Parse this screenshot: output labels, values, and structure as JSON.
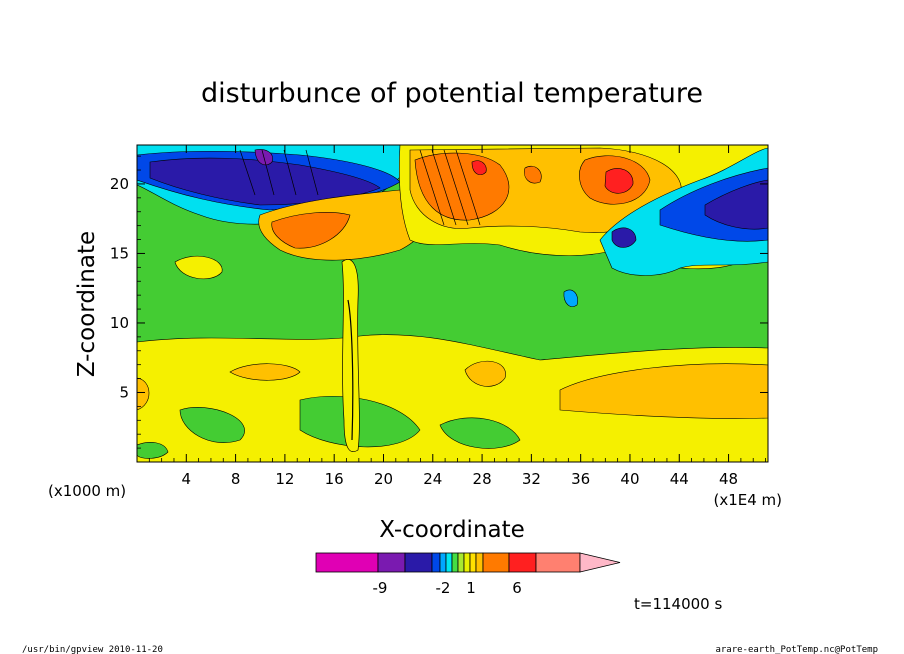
{
  "chart_data": {
    "type": "heatmap",
    "title": "disturbunce of potential temperature",
    "xlabel": "X-coordinate",
    "ylabel": "Z-coordinate",
    "x_unit_left": "(x1000 m)",
    "x_unit_right": "(x1E4 m)",
    "xlim": [
      0,
      51.2
    ],
    "ylim": [
      0,
      22.8
    ],
    "x_ticks": [
      4,
      8,
      12,
      16,
      20,
      24,
      28,
      32,
      36,
      40,
      44,
      48
    ],
    "y_ticks": [
      5,
      10,
      15,
      20
    ],
    "colorbar": {
      "ticks": [
        "-9",
        "-2",
        "1",
        "6"
      ],
      "colors": [
        "#e000b4",
        "#7a1ab0",
        "#2a1aa8",
        "#0048e8",
        "#00a8ff",
        "#00e8f0",
        "#44dd44",
        "#a8e830",
        "#e8f000",
        "#ffe000",
        "#ffc000",
        "#ff7a00",
        "#ff2020",
        "#ff8070",
        "#ffb8c8"
      ]
    },
    "time_label": "t=114000 s",
    "notes": {
      "left": "/usr/bin/gpview  2010-11-20",
      "right": "arare-earth_PotTemp.nc@PotTemp"
    }
  }
}
